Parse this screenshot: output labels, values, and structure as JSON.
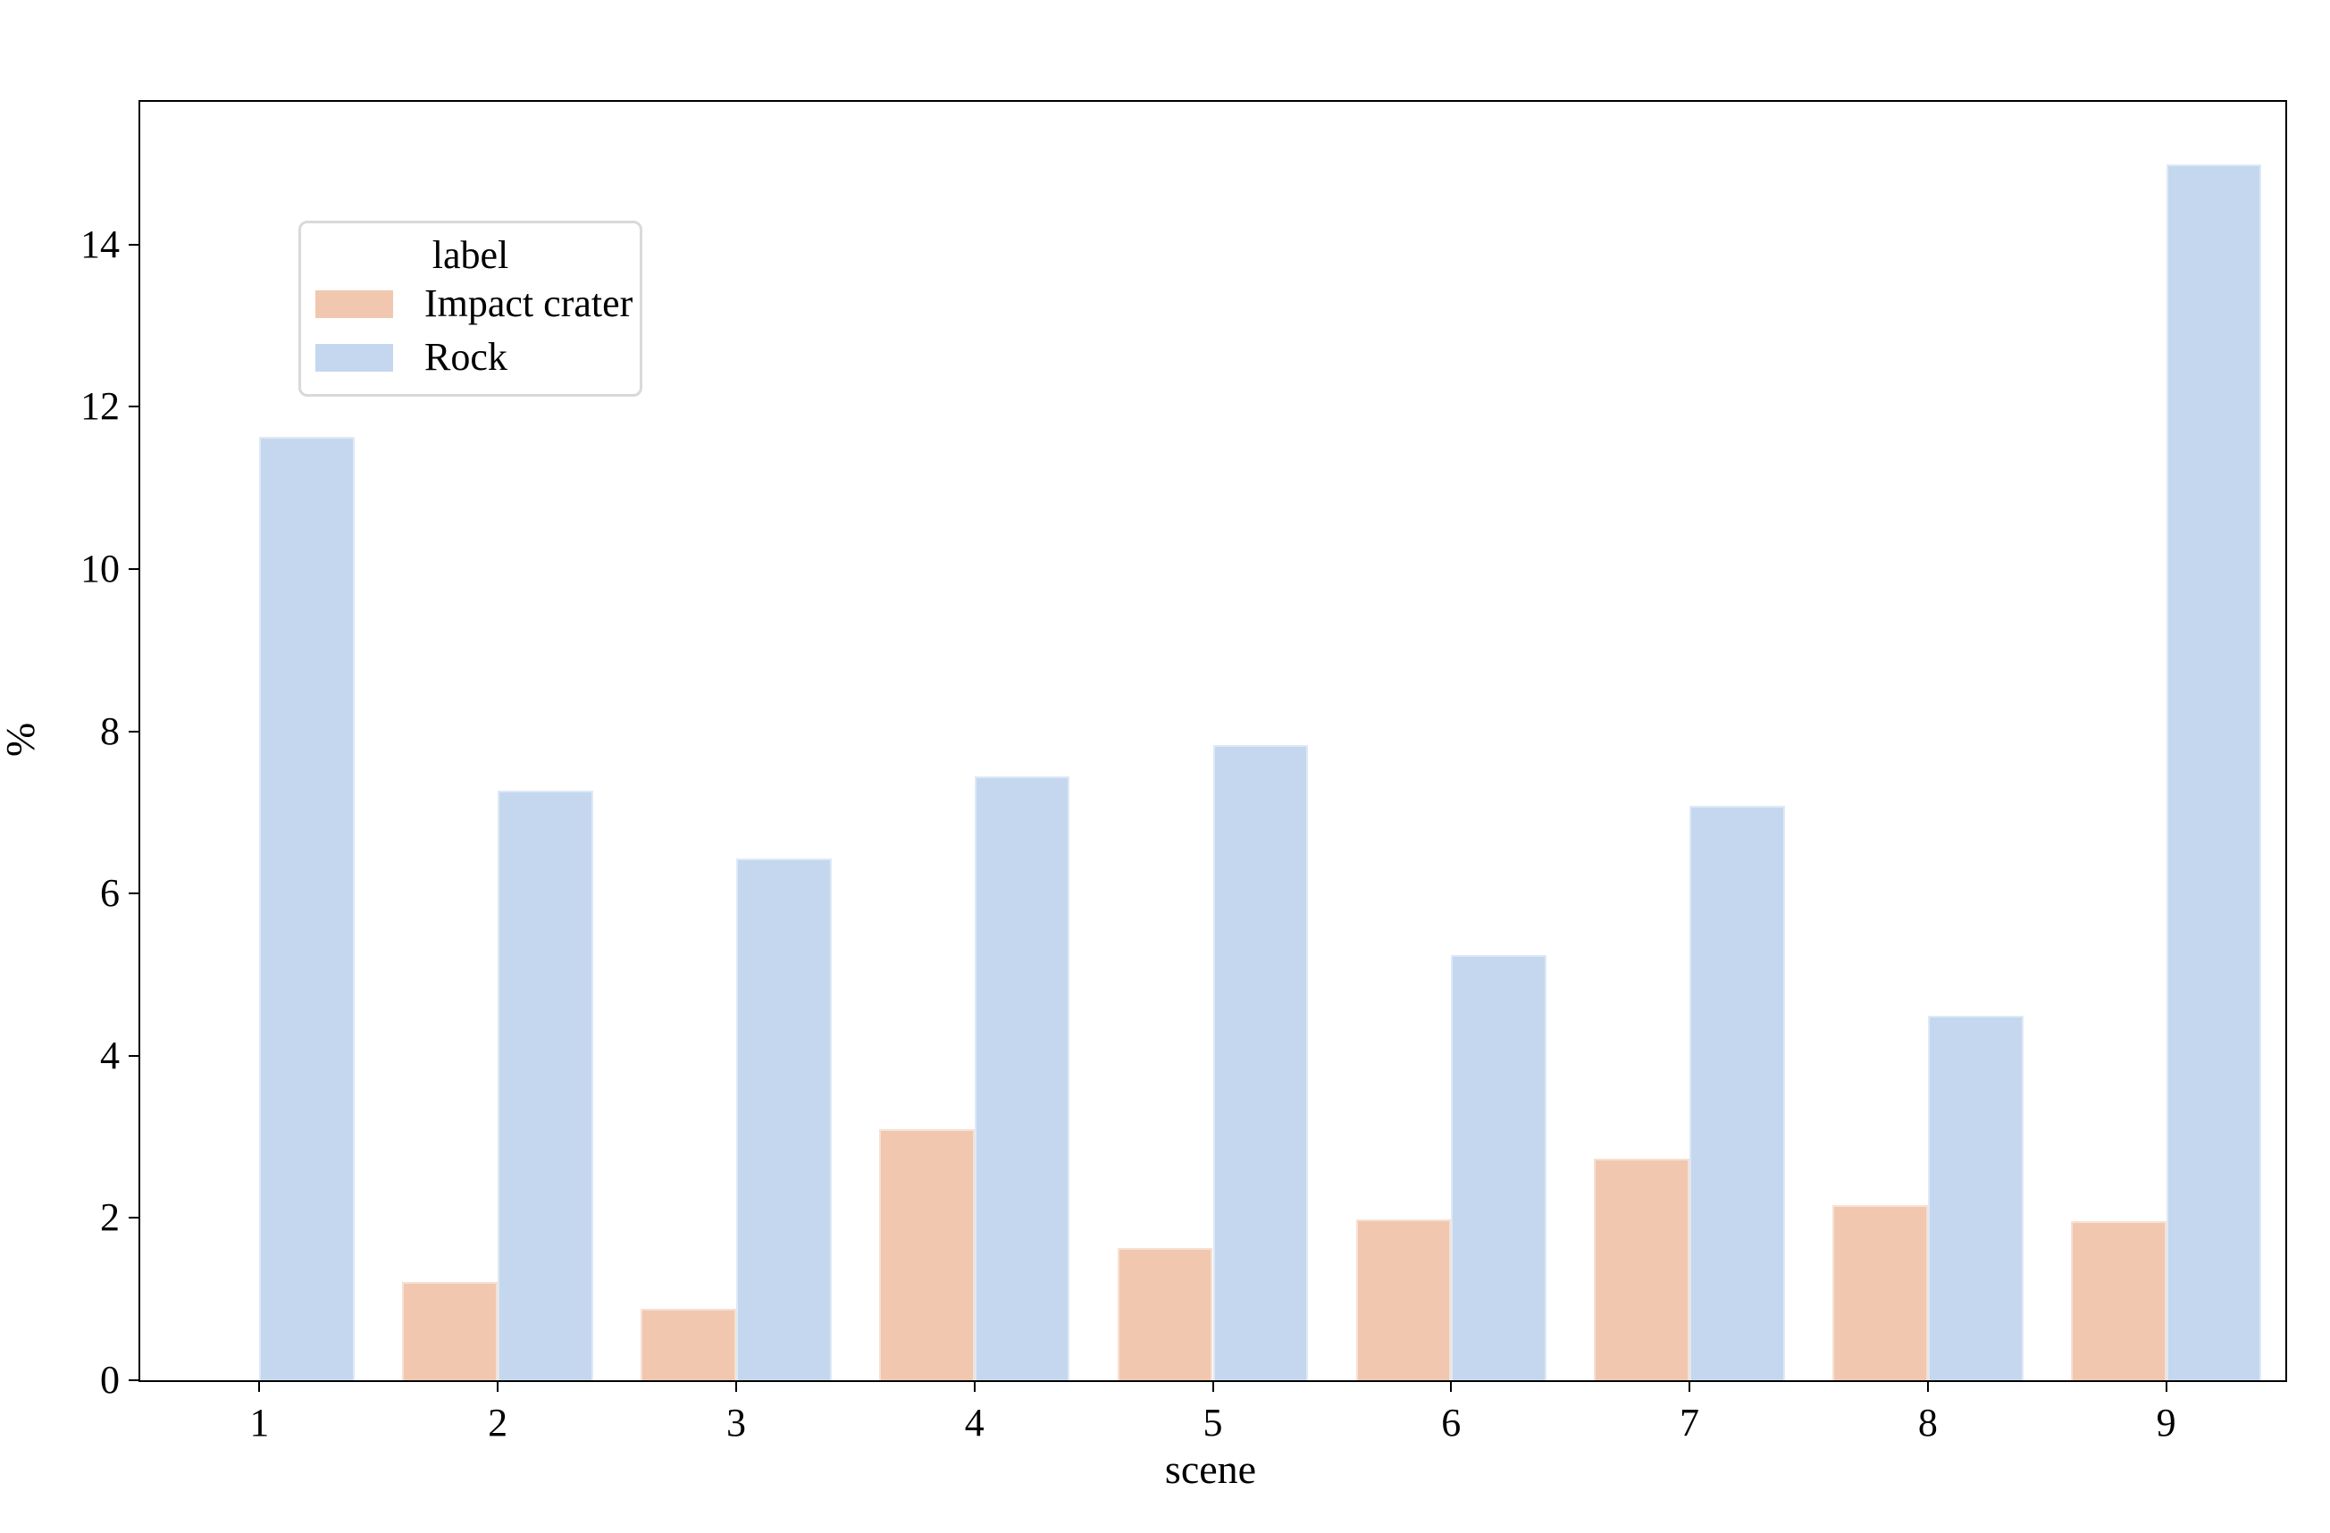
{
  "chart_data": {
    "type": "bar",
    "title": "",
    "xlabel": "scene",
    "ylabel": "%",
    "categories": [
      "1",
      "2",
      "3",
      "4",
      "5",
      "6",
      "7",
      "8",
      "9"
    ],
    "series": [
      {
        "name": "Impact crater",
        "color": "#f1c7b0",
        "values": [
          0,
          1.21,
          0.88,
          3.1,
          1.63,
          1.98,
          2.73,
          2.16,
          1.96
        ]
      },
      {
        "name": "Rock",
        "color": "#c4d7ee",
        "values": [
          11.63,
          7.27,
          6.43,
          7.44,
          7.83,
          5.24,
          7.08,
          4.49,
          14.99
        ]
      }
    ],
    "y_ticks": [
      0,
      2,
      4,
      6,
      8,
      10,
      12,
      14
    ],
    "ylim": [
      0,
      15.76
    ],
    "grid": false,
    "legend": {
      "title": "label",
      "position": "upper-left"
    }
  }
}
